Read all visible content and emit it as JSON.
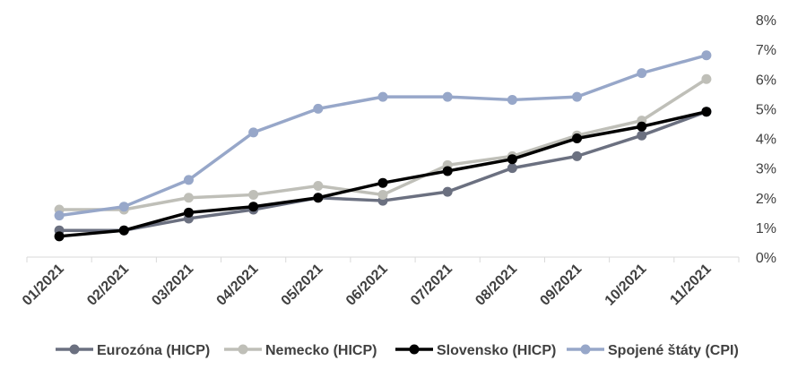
{
  "chart_data": {
    "type": "line",
    "title": "",
    "xlabel": "",
    "ylabel": "",
    "categories": [
      "01/2021",
      "02/2021",
      "03/2021",
      "04/2021",
      "05/2021",
      "06/2021",
      "07/2021",
      "08/2021",
      "09/2021",
      "10/2021",
      "11/2021"
    ],
    "y_ticks": [
      "0%",
      "1%",
      "2%",
      "3%",
      "4%",
      "5%",
      "6%",
      "7%",
      "8%"
    ],
    "ylim": [
      0,
      8
    ],
    "y_axis_position": "right",
    "grid": false,
    "legend_position": "bottom",
    "series": [
      {
        "name": "Eurozóna (HICP)",
        "color": "#6b7080",
        "values": [
          0.9,
          0.9,
          1.3,
          1.6,
          2.0,
          1.9,
          2.2,
          3.0,
          3.4,
          4.1,
          4.9
        ]
      },
      {
        "name": "Nemecko (HICP)",
        "color": "#bfbfb8",
        "values": [
          1.6,
          1.6,
          2.0,
          2.1,
          2.4,
          2.1,
          3.1,
          3.4,
          4.1,
          4.6,
          6.0
        ]
      },
      {
        "name": "Slovensko (HICP)",
        "color": "#000000",
        "values": [
          0.7,
          0.9,
          1.5,
          1.7,
          2.0,
          2.5,
          2.9,
          3.3,
          4.0,
          4.4,
          4.9
        ]
      },
      {
        "name": "Spojené štáty (CPI)",
        "color": "#97a7c9",
        "values": [
          1.4,
          1.7,
          2.6,
          4.2,
          5.0,
          5.4,
          5.4,
          5.3,
          5.4,
          6.2,
          6.8
        ]
      }
    ]
  }
}
